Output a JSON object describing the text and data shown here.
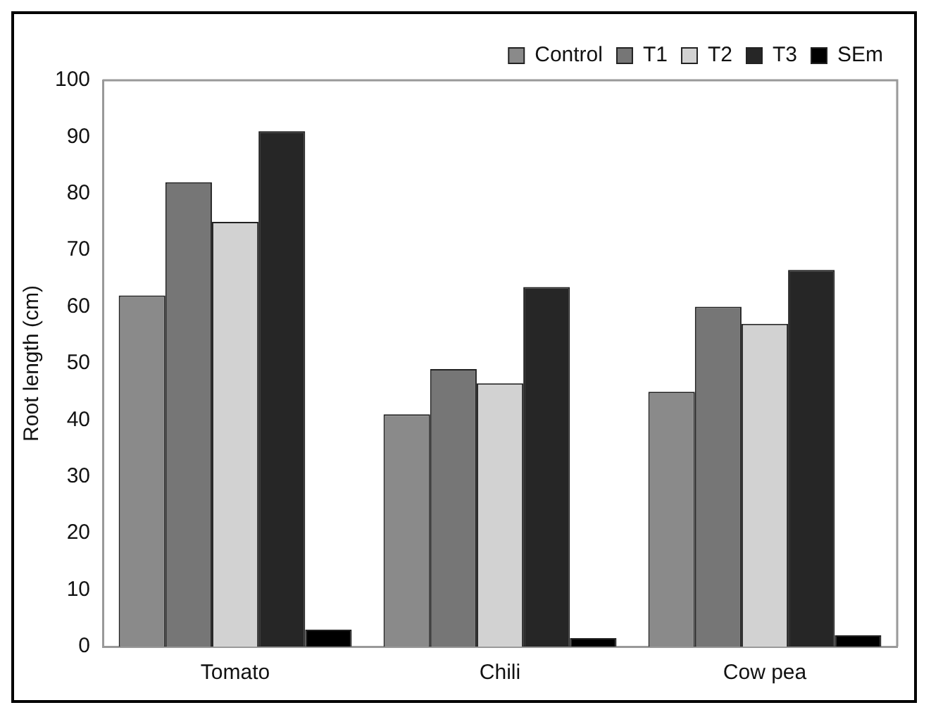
{
  "chart_data": {
    "type": "bar",
    "ylabel": "Root length (cm)",
    "categories": [
      "Tomato",
      "Chili",
      "Cow pea"
    ],
    "series": [
      {
        "name": "Control",
        "color": "#8a8a8a",
        "values": [
          62,
          41,
          45
        ]
      },
      {
        "name": "T1",
        "color": "#767676",
        "values": [
          82,
          49,
          60
        ]
      },
      {
        "name": "T2",
        "color": "#d2d2d2",
        "values": [
          75,
          46.5,
          57
        ]
      },
      {
        "name": "T3",
        "color": "#262626",
        "values": [
          91,
          63.5,
          66.5
        ]
      },
      {
        "name": "SEm",
        "color": "#000000",
        "values": [
          3,
          1.5,
          2
        ]
      }
    ],
    "ylim": [
      0,
      100
    ],
    "yticks": [
      0,
      10,
      20,
      30,
      40,
      50,
      60,
      70,
      80,
      90,
      100
    ],
    "grid": false,
    "legend": "top right"
  }
}
